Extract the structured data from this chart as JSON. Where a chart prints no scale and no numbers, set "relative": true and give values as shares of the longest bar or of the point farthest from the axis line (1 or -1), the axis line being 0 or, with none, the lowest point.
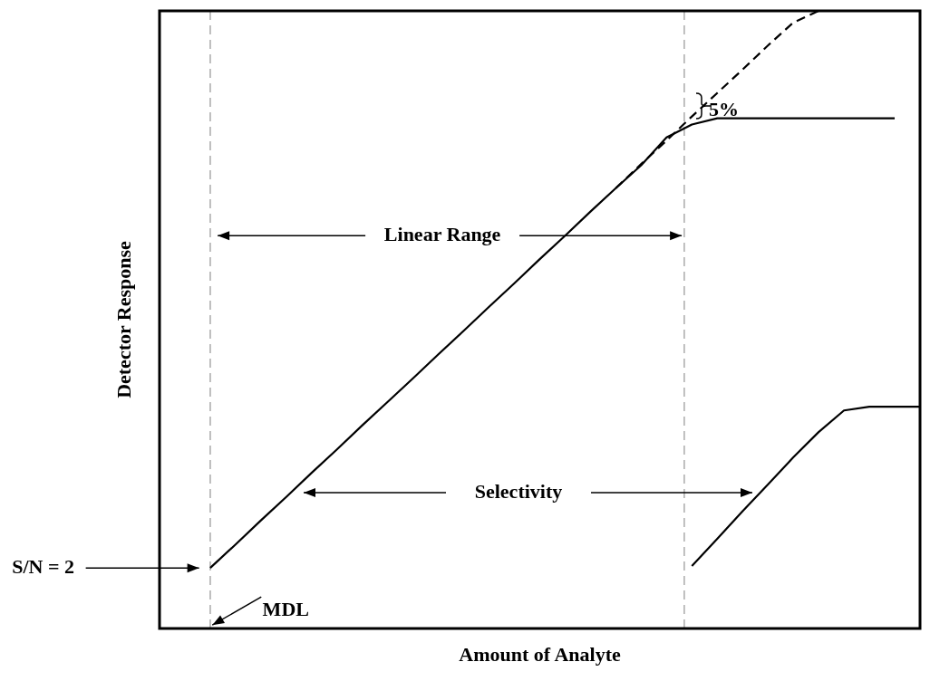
{
  "chart_data": {
    "type": "line",
    "relative": true,
    "xlabel": "Amount of Analyte",
    "ylabel": "Detector Response",
    "legend": false,
    "marker": "none",
    "categories": [
      null,
      null,
      null,
      null,
      null,
      null,
      null,
      null,
      null,
      null,
      null,
      null,
      null,
      null,
      null,
      null,
      null,
      null,
      null,
      null,
      null,
      null,
      null,
      null,
      null,
      null,
      null,
      null,
      null,
      null,
      null
    ],
    "series": [
      {
        "color": "#000000",
        "values": [
          null,
          null,
          0.098,
          0.136,
          0.175,
          0.213,
          0.252,
          0.29,
          0.329,
          0.367,
          0.405,
          0.444,
          0.482,
          0.521,
          0.559,
          0.598,
          0.636,
          0.675,
          0.713,
          0.75,
          0.795,
          0.816,
          0.826,
          0.826,
          0.826,
          0.826,
          0.826,
          0.826,
          0.826,
          0.826,
          null
        ]
      },
      {
        "color": "#000000",
        "line_style": "dashed",
        "values": [
          null,
          null,
          null,
          null,
          null,
          null,
          null,
          null,
          null,
          null,
          null,
          null,
          null,
          null,
          null,
          null,
          null,
          null,
          0.713,
          0.752,
          0.79,
          0.829,
          0.867,
          0.905,
          0.944,
          0.981,
          1.0,
          null,
          null,
          null,
          null
        ]
      },
      {
        "color": "#000000",
        "values": [
          null,
          null,
          null,
          null,
          null,
          null,
          null,
          null,
          null,
          null,
          null,
          null,
          null,
          null,
          null,
          null,
          null,
          null,
          null,
          null,
          null,
          0.101,
          0.145,
          0.19,
          0.233,
          0.277,
          0.318,
          0.353,
          0.359,
          0.359,
          0.359
        ]
      }
    ],
    "annotations": [
      "Linear Range",
      "Selectivity",
      "5%",
      "MDL",
      "S/N = 2"
    ]
  }
}
